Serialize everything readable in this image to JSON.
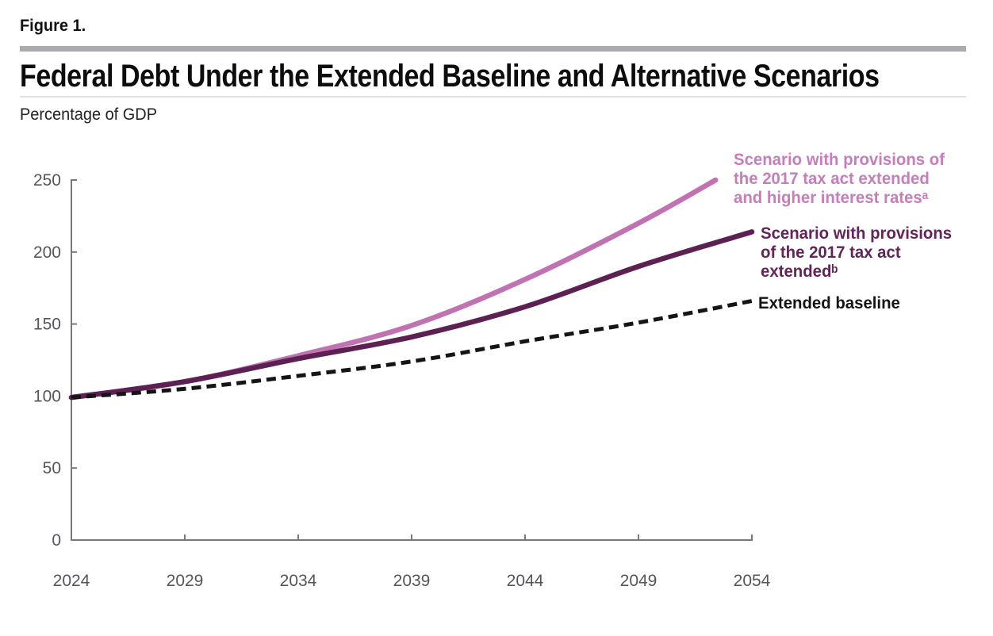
{
  "figure_label": "Figure 1.",
  "title": "Federal Debt Under the Extended Baseline and Alternative Scenarios",
  "unit_label": "Percentage of GDP",
  "colors": {
    "header_bar": "#A9ABAE",
    "title_rule": "#E3E3E3",
    "axis": "#77787B",
    "tick_label": "#55565A",
    "background": "#FFFFFF"
  },
  "chart_data": {
    "type": "line",
    "title": "Federal Debt Under the Extended Baseline and Alternative Scenarios",
    "ylabel": "Percentage of GDP",
    "xlabel": "",
    "xlim": [
      2024,
      2054
    ],
    "ylim": [
      0,
      250
    ],
    "x_ticks": [
      2024,
      2029,
      2034,
      2039,
      2044,
      2049,
      2054
    ],
    "y_ticks": [
      0,
      50,
      100,
      150,
      200,
      250
    ],
    "grid": false,
    "legend_position": "right of line ends",
    "series": [
      {
        "name": "Scenario with provisions of the 2017 tax act extended and higher interest ratesᵃ",
        "label_lines": [
          "Scenario with provisions of",
          "the 2017 tax act extended",
          "and higher interest ratesᵃ"
        ],
        "color": "#C172B2",
        "label_color": "#C67EBB",
        "style": "solid",
        "x": [
          2024,
          2029,
          2034,
          2039,
          2044,
          2049,
          2052.4
        ],
        "values": [
          99,
          110,
          128,
          149,
          181,
          220,
          250
        ]
      },
      {
        "name": "Scenario with provisions of the 2017 tax act extendedᵇ",
        "label_lines": [
          "Scenario with provisions",
          "of the 2017 tax act",
          "extendedᵇ"
        ],
        "color": "#5C2052",
        "label_color": "#632459",
        "style": "solid",
        "x": [
          2024,
          2029,
          2034,
          2039,
          2044,
          2049,
          2054
        ],
        "values": [
          99,
          110,
          126,
          141,
          162,
          190,
          214
        ]
      },
      {
        "name": "Extended baseline",
        "label_lines": [
          "Extended baseline"
        ],
        "color": "#151515",
        "label_color": "#151515",
        "style": "dashed",
        "x": [
          2024,
          2029,
          2034,
          2039,
          2044,
          2049,
          2054
        ],
        "values": [
          99,
          105,
          114,
          124,
          138,
          151,
          166
        ]
      }
    ]
  }
}
